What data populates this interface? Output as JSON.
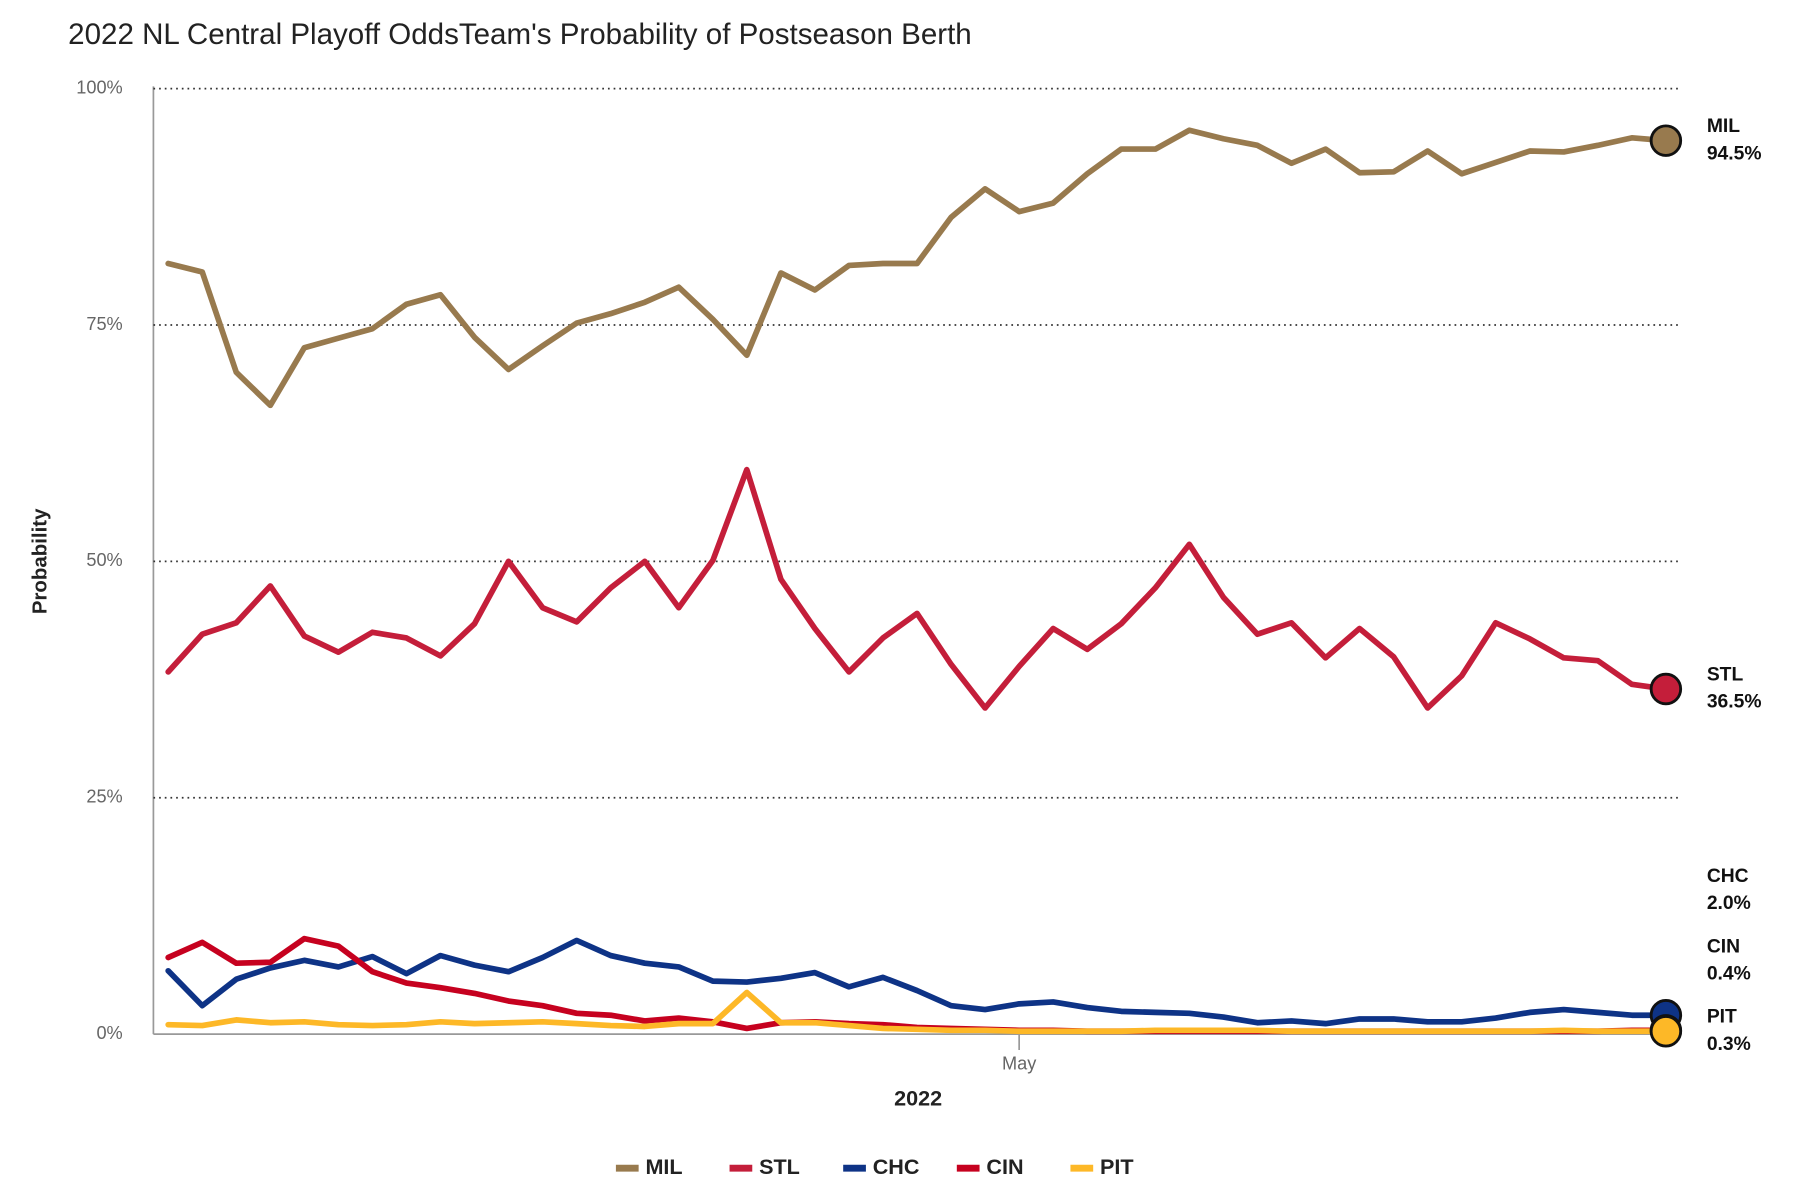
{
  "chart_data": {
    "type": "line",
    "title": "2022 NL Central Playoff OddsTeam's Probability of Postseason Berth",
    "x_label": "2022",
    "y_label": "Probability",
    "categories": [
      null,
      null,
      null,
      null,
      null,
      null,
      null,
      null,
      null,
      null,
      null,
      null,
      null,
      null,
      null,
      null,
      null,
      null,
      null,
      null,
      null,
      null,
      null,
      null,
      null,
      "May",
      null,
      null,
      null,
      null,
      null,
      null,
      null,
      null,
      null,
      null,
      null,
      null,
      null,
      null,
      null,
      null,
      null,
      null,
      null
    ],
    "ylim": [
      0,
      100
    ],
    "yticks": [
      {
        "value": 0,
        "label": "0%"
      },
      {
        "value": 25,
        "label": "25%"
      },
      {
        "value": 50,
        "label": "50%"
      },
      {
        "value": 75,
        "label": "75%"
      },
      {
        "value": 100,
        "label": "100%"
      }
    ],
    "grid": true,
    "legend": "bottom",
    "series": [
      {
        "name": "MIL",
        "color": "#987a4e",
        "values": [
          81.5,
          80.6,
          70.0,
          66.5,
          72.6,
          73.6,
          74.6,
          77.2,
          78.2,
          73.7,
          70.3,
          72.8,
          75.2,
          76.2,
          77.4,
          79.0,
          75.6,
          71.8,
          80.5,
          78.7,
          81.3,
          81.5,
          81.5,
          86.4,
          89.4,
          87.0,
          87.9,
          91.0,
          93.6,
          93.6,
          95.6,
          94.7,
          94.0,
          92.1,
          93.6,
          91.1,
          91.2,
          93.4,
          91.0,
          92.2,
          93.4,
          93.3,
          94.0,
          94.8,
          94.5
        ],
        "value_labels": [
          null,
          null,
          null,
          null,
          null,
          null,
          null,
          null,
          null,
          null,
          null,
          null,
          null,
          null,
          null,
          null,
          null,
          null,
          null,
          null,
          null,
          null,
          null,
          null,
          null,
          null,
          null,
          null,
          null,
          null,
          null,
          null,
          null,
          null,
          null,
          null,
          null,
          null,
          null,
          null,
          null,
          null,
          null,
          null,
          "94.5%"
        ]
      },
      {
        "name": "STL",
        "color": "#c41e3a",
        "values": [
          38.3,
          42.3,
          43.5,
          47.4,
          42.1,
          40.4,
          42.5,
          41.9,
          40.0,
          43.4,
          50.0,
          45.1,
          43.6,
          47.2,
          50.0,
          45.1,
          50.1,
          59.7,
          48.1,
          42.9,
          38.3,
          41.9,
          44.5,
          39.1,
          34.5,
          38.9,
          42.9,
          40.7,
          43.4,
          47.2,
          51.8,
          46.2,
          42.3,
          43.5,
          39.8,
          42.9,
          39.9,
          34.5,
          37.9,
          43.5,
          41.8,
          39.8,
          39.5,
          37.0,
          36.5
        ],
        "value_labels": [
          null,
          null,
          null,
          null,
          null,
          null,
          null,
          null,
          null,
          null,
          null,
          null,
          null,
          null,
          null,
          null,
          null,
          null,
          null,
          null,
          null,
          null,
          null,
          null,
          null,
          null,
          null,
          null,
          null,
          null,
          null,
          null,
          null,
          null,
          null,
          null,
          null,
          null,
          null,
          null,
          null,
          null,
          null,
          null,
          "36.5%"
        ]
      },
      {
        "name": "CHC",
        "color": "#0e3386",
        "values": [
          6.7,
          3.0,
          5.8,
          7.0,
          7.8,
          7.1,
          8.2,
          6.4,
          8.3,
          7.3,
          6.6,
          8.1,
          9.9,
          8.3,
          7.5,
          7.1,
          5.6,
          5.5,
          5.9,
          6.5,
          5.0,
          6.0,
          4.6,
          3.0,
          2.6,
          3.2,
          3.4,
          2.8,
          2.4,
          2.3,
          2.2,
          1.8,
          1.2,
          1.4,
          1.1,
          1.6,
          1.6,
          1.3,
          1.3,
          1.7,
          2.3,
          2.6,
          2.3,
          2.0,
          2.0
        ],
        "value_labels": [
          null,
          null,
          null,
          null,
          null,
          null,
          null,
          null,
          null,
          null,
          null,
          null,
          null,
          null,
          null,
          null,
          null,
          null,
          null,
          null,
          null,
          null,
          null,
          null,
          null,
          null,
          null,
          null,
          null,
          null,
          null,
          null,
          null,
          null,
          null,
          null,
          null,
          null,
          null,
          null,
          null,
          null,
          null,
          null,
          "2.0%"
        ]
      },
      {
        "name": "CIN",
        "color": "#c6011f",
        "values": [
          8.1,
          9.7,
          7.5,
          7.6,
          10.1,
          9.3,
          6.6,
          5.4,
          4.9,
          4.3,
          3.5,
          3.0,
          2.2,
          2.0,
          1.4,
          1.7,
          1.3,
          0.6,
          1.2,
          1.3,
          1.1,
          1.0,
          0.7,
          0.6,
          0.5,
          0.4,
          0.4,
          0.3,
          0.3,
          0.3,
          0.3,
          0.3,
          0.3,
          0.3,
          0.3,
          0.3,
          0.3,
          0.3,
          0.3,
          0.3,
          0.3,
          0.3,
          0.3,
          0.4,
          0.4
        ],
        "value_labels": [
          null,
          null,
          null,
          null,
          null,
          null,
          null,
          null,
          null,
          null,
          null,
          null,
          null,
          null,
          null,
          null,
          null,
          null,
          null,
          null,
          null,
          null,
          null,
          null,
          null,
          null,
          null,
          null,
          null,
          null,
          null,
          null,
          null,
          null,
          null,
          null,
          null,
          null,
          null,
          null,
          null,
          null,
          null,
          null,
          "0.4%"
        ]
      },
      {
        "name": "PIT",
        "color": "#fdb827",
        "values": [
          1.0,
          0.9,
          1.5,
          1.2,
          1.3,
          1.0,
          0.9,
          1.0,
          1.3,
          1.1,
          1.2,
          1.3,
          1.1,
          0.9,
          0.8,
          1.1,
          1.1,
          4.4,
          1.2,
          1.2,
          0.9,
          0.6,
          0.5,
          0.4,
          0.4,
          0.3,
          0.3,
          0.3,
          0.3,
          0.4,
          0.4,
          0.4,
          0.4,
          0.3,
          0.3,
          0.3,
          0.3,
          0.3,
          0.3,
          0.3,
          0.3,
          0.4,
          0.3,
          0.3,
          0.3
        ],
        "value_labels": [
          null,
          null,
          null,
          null,
          null,
          null,
          null,
          null,
          null,
          null,
          null,
          null,
          null,
          null,
          null,
          null,
          null,
          null,
          null,
          null,
          null,
          null,
          null,
          null,
          null,
          null,
          null,
          null,
          null,
          null,
          null,
          null,
          null,
          null,
          null,
          null,
          null,
          null,
          null,
          null,
          null,
          null,
          null,
          null,
          "0.3%"
        ]
      }
    ]
  }
}
